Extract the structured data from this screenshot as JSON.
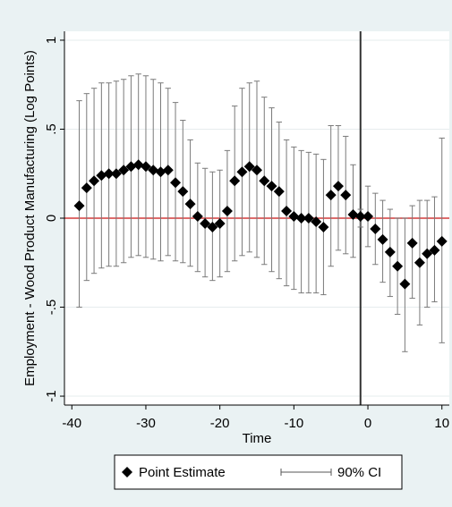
{
  "chart_data": {
    "type": "scatter",
    "title": "",
    "xlabel": "Time",
    "ylabel": "Employment - Wood Product Manufacturing (Log Points)",
    "xlim": [
      -41,
      11
    ],
    "ylim": [
      -1.05,
      1.05
    ],
    "xticks": [
      -40,
      -30,
      -20,
      -10,
      0,
      10
    ],
    "yticks": [
      -1,
      -0.5,
      0,
      0.5,
      1
    ],
    "ytick_labels": [
      "-1",
      "-.5",
      "0",
      ".5",
      "1"
    ],
    "grid": true,
    "reference_hline": {
      "y": 0,
      "color": "#d43b3b"
    },
    "reference_vline": {
      "x": -1,
      "color": "#333333"
    },
    "legend_position": "bottom",
    "legend": [
      {
        "label": "Point Estimate",
        "marker": "diamond"
      },
      {
        "label": "90% CI",
        "marker": "capped-line"
      }
    ],
    "series": [
      {
        "name": "Point Estimate",
        "points": [
          {
            "x": -39,
            "y": 0.07,
            "lo": -0.5,
            "hi": 0.66
          },
          {
            "x": -38,
            "y": 0.17,
            "lo": -0.35,
            "hi": 0.7
          },
          {
            "x": -37,
            "y": 0.21,
            "lo": -0.31,
            "hi": 0.73
          },
          {
            "x": -36,
            "y": 0.24,
            "lo": -0.28,
            "hi": 0.76
          },
          {
            "x": -35,
            "y": 0.25,
            "lo": -0.27,
            "hi": 0.76
          },
          {
            "x": -34,
            "y": 0.25,
            "lo": -0.27,
            "hi": 0.77
          },
          {
            "x": -33,
            "y": 0.27,
            "lo": -0.25,
            "hi": 0.78
          },
          {
            "x": -32,
            "y": 0.29,
            "lo": -0.22,
            "hi": 0.8
          },
          {
            "x": -31,
            "y": 0.3,
            "lo": -0.21,
            "hi": 0.81
          },
          {
            "x": -30,
            "y": 0.29,
            "lo": -0.22,
            "hi": 0.8
          },
          {
            "x": -29,
            "y": 0.27,
            "lo": -0.23,
            "hi": 0.78
          },
          {
            "x": -28,
            "y": 0.26,
            "lo": -0.24,
            "hi": 0.76
          },
          {
            "x": -27,
            "y": 0.27,
            "lo": -0.21,
            "hi": 0.73
          },
          {
            "x": -26,
            "y": 0.2,
            "lo": -0.24,
            "hi": 0.65
          },
          {
            "x": -25,
            "y": 0.15,
            "lo": -0.25,
            "hi": 0.55
          },
          {
            "x": -24,
            "y": 0.08,
            "lo": -0.27,
            "hi": 0.44
          },
          {
            "x": -23,
            "y": 0.01,
            "lo": -0.3,
            "hi": 0.31
          },
          {
            "x": -22,
            "y": -0.03,
            "lo": -0.33,
            "hi": 0.28
          },
          {
            "x": -21,
            "y": -0.05,
            "lo": -0.35,
            "hi": 0.26
          },
          {
            "x": -20,
            "y": -0.03,
            "lo": -0.33,
            "hi": 0.27
          },
          {
            "x": -19,
            "y": 0.04,
            "lo": -0.3,
            "hi": 0.38
          },
          {
            "x": -18,
            "y": 0.21,
            "lo": -0.24,
            "hi": 0.63
          },
          {
            "x": -17,
            "y": 0.26,
            "lo": -0.21,
            "hi": 0.73
          },
          {
            "x": -16,
            "y": 0.29,
            "lo": -0.19,
            "hi": 0.76
          },
          {
            "x": -15,
            "y": 0.27,
            "lo": -0.22,
            "hi": 0.77
          },
          {
            "x": -14,
            "y": 0.21,
            "lo": -0.26,
            "hi": 0.68
          },
          {
            "x": -13,
            "y": 0.18,
            "lo": -0.3,
            "hi": 0.62
          },
          {
            "x": -12,
            "y": 0.15,
            "lo": -0.34,
            "hi": 0.54
          },
          {
            "x": -11,
            "y": 0.04,
            "lo": -0.38,
            "hi": 0.44
          },
          {
            "x": -10,
            "y": 0.01,
            "lo": -0.4,
            "hi": 0.4
          },
          {
            "x": -9,
            "y": 0.0,
            "lo": -0.42,
            "hi": 0.38
          },
          {
            "x": -8,
            "y": 0.0,
            "lo": -0.42,
            "hi": 0.37
          },
          {
            "x": -7,
            "y": -0.02,
            "lo": -0.42,
            "hi": 0.36
          },
          {
            "x": -6,
            "y": -0.05,
            "lo": -0.43,
            "hi": 0.33
          },
          {
            "x": -5,
            "y": 0.13,
            "lo": -0.27,
            "hi": 0.52
          },
          {
            "x": -4,
            "y": 0.18,
            "lo": -0.18,
            "hi": 0.52
          },
          {
            "x": -3,
            "y": 0.13,
            "lo": -0.2,
            "hi": 0.46
          },
          {
            "x": -2,
            "y": 0.02,
            "lo": -0.22,
            "hi": 0.3
          },
          {
            "x": -1,
            "y": 0.01,
            "lo": -0.05,
            "hi": 0.05
          },
          {
            "x": 0,
            "y": 0.01,
            "lo": -0.16,
            "hi": 0.18
          },
          {
            "x": 1,
            "y": -0.06,
            "lo": -0.26,
            "hi": 0.14
          },
          {
            "x": 2,
            "y": -0.12,
            "lo": -0.36,
            "hi": 0.1
          },
          {
            "x": 3,
            "y": -0.19,
            "lo": -0.44,
            "hi": 0.05
          },
          {
            "x": 4,
            "y": -0.27,
            "lo": -0.54,
            "hi": 0.0
          },
          {
            "x": 5,
            "y": -0.37,
            "lo": -0.75,
            "hi": 0.0
          },
          {
            "x": 6,
            "y": -0.14,
            "lo": -0.45,
            "hi": 0.07
          },
          {
            "x": 7,
            "y": -0.25,
            "lo": -0.6,
            "hi": 0.1
          },
          {
            "x": 8,
            "y": -0.2,
            "lo": -0.5,
            "hi": 0.1
          },
          {
            "x": 9,
            "y": -0.18,
            "lo": -0.47,
            "hi": 0.12
          },
          {
            "x": 10,
            "y": -0.13,
            "lo": -0.7,
            "hi": 0.45
          }
        ]
      }
    ]
  }
}
